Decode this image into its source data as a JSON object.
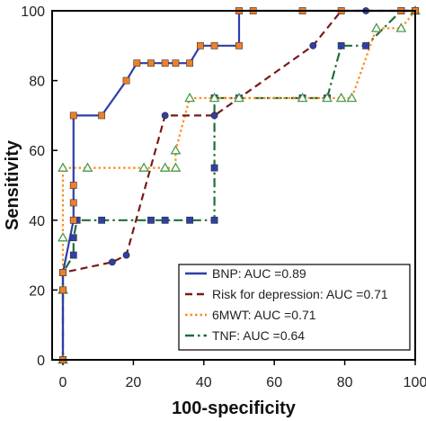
{
  "chart_data": {
    "type": "line",
    "xlabel": "100-specificity",
    "ylabel": "Sensitivity",
    "xlim": [
      0,
      100
    ],
    "ylim": [
      0,
      100
    ],
    "x_ticks": [
      "0",
      "20",
      "40",
      "60",
      "80",
      "100"
    ],
    "y_ticks": [
      "0",
      "20",
      "40",
      "60",
      "80",
      "100"
    ],
    "legend_position": "bottom-right",
    "series": [
      {
        "name": "BNP: AUC =0.89",
        "color": "#2e3fa8",
        "line_style": "solid",
        "marker": "square",
        "marker_color": "#f07f2a",
        "points": [
          [
            0,
            0
          ],
          [
            0,
            20
          ],
          [
            0,
            25
          ],
          [
            3,
            40
          ],
          [
            3,
            45
          ],
          [
            3,
            50
          ],
          [
            3,
            70
          ],
          [
            11,
            70
          ],
          [
            18,
            80
          ],
          [
            21,
            85
          ],
          [
            25,
            85
          ],
          [
            29,
            85
          ],
          [
            32,
            85
          ],
          [
            36,
            85
          ],
          [
            39,
            90
          ],
          [
            43,
            90
          ],
          [
            50,
            90
          ],
          [
            50,
            100
          ],
          [
            54,
            100
          ],
          [
            68,
            100
          ],
          [
            79,
            100
          ],
          [
            96,
            100
          ],
          [
            100,
            100
          ]
        ]
      },
      {
        "name": "Risk for depression: AUC =0.71",
        "color": "#7a1a1a",
        "line_style": "dashed",
        "marker": "circle",
        "marker_color": "#2e3fa8",
        "points": [
          [
            0,
            0
          ],
          [
            0,
            25
          ],
          [
            14,
            28
          ],
          [
            18,
            30
          ],
          [
            29,
            70
          ],
          [
            43,
            70
          ],
          [
            71,
            90
          ],
          [
            79,
            100
          ],
          [
            86,
            100
          ],
          [
            100,
            100
          ]
        ]
      },
      {
        "name": "6MWT: AUC =0.71",
        "color": "#ff8c1a",
        "line_style": "dotted",
        "marker": "triangle",
        "marker_color": "#4a9a4a",
        "points": [
          [
            0,
            0
          ],
          [
            0,
            20
          ],
          [
            0,
            35
          ],
          [
            0,
            55
          ],
          [
            7,
            55
          ],
          [
            23,
            55
          ],
          [
            29,
            55
          ],
          [
            32,
            55
          ],
          [
            32,
            60
          ],
          [
            36,
            75
          ],
          [
            43,
            75
          ],
          [
            50,
            75
          ],
          [
            68,
            75
          ],
          [
            75,
            75
          ],
          [
            79,
            75
          ],
          [
            82,
            75
          ],
          [
            89,
            95
          ],
          [
            96,
            95
          ],
          [
            100,
            100
          ]
        ]
      },
      {
        "name": "TNF: AUC =0.64",
        "color": "#1f6e3a",
        "line_style": "dashdot",
        "marker": "square",
        "marker_color": "#2e3fa8",
        "points": [
          [
            0,
            0
          ],
          [
            0,
            20
          ],
          [
            0,
            25
          ],
          [
            3,
            30
          ],
          [
            3,
            35
          ],
          [
            4,
            40
          ],
          [
            11,
            40
          ],
          [
            25,
            40
          ],
          [
            29,
            40
          ],
          [
            36,
            40
          ],
          [
            43,
            40
          ],
          [
            43,
            55
          ],
          [
            43,
            75
          ],
          [
            50,
            75
          ],
          [
            68,
            75
          ],
          [
            75,
            75
          ],
          [
            79,
            90
          ],
          [
            86,
            90
          ],
          [
            96,
            100
          ],
          [
            100,
            100
          ]
        ]
      }
    ]
  }
}
